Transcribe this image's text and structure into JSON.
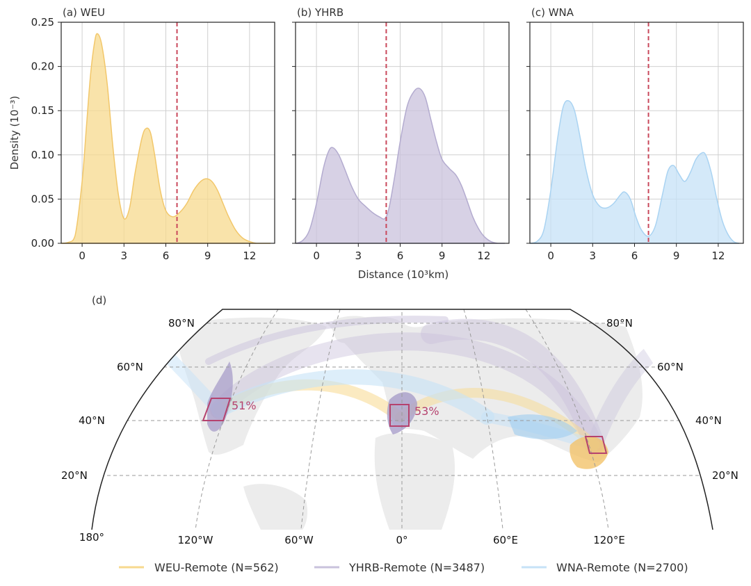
{
  "colors": {
    "weu": "#f7d98e",
    "yhrb": "#c9c2dc",
    "wna": "#c6e2f7",
    "dashed_line": "#c9485b",
    "box": "#b5426e",
    "grid": "#d0d0d0"
  },
  "chart_data": [
    {
      "type": "area",
      "title": "(a) WEU",
      "series_key": "weu",
      "xlabel": "",
      "ylabel": "Density (10⁻³)",
      "xlim": [
        -1.5,
        13.8
      ],
      "ylim": [
        0,
        0.25
      ],
      "xticks": [
        "0",
        "3",
        "6",
        "9",
        "12"
      ],
      "yticks": [
        "0.00",
        "0.05",
        "0.10",
        "0.15",
        "0.20",
        "0.25"
      ],
      "threshold_x": 6.8,
      "x": [
        -1.5,
        -1.0,
        -0.5,
        0.0,
        0.3,
        0.6,
        0.9,
        1.1,
        1.4,
        1.8,
        2.2,
        2.6,
        3.0,
        3.4,
        3.8,
        4.3,
        4.6,
        4.9,
        5.2,
        5.6,
        6.0,
        6.5,
        7.0,
        7.5,
        8.0,
        8.5,
        8.9,
        9.3,
        9.7,
        10.1,
        10.5,
        11.0,
        11.5,
        12.0,
        12.5,
        13.0,
        13.5
      ],
      "y": [
        0.0,
        0.001,
        0.009,
        0.07,
        0.13,
        0.19,
        0.228,
        0.237,
        0.225,
        0.18,
        0.11,
        0.055,
        0.028,
        0.04,
        0.08,
        0.12,
        0.13,
        0.125,
        0.1,
        0.06,
        0.037,
        0.03,
        0.035,
        0.045,
        0.06,
        0.07,
        0.073,
        0.07,
        0.06,
        0.045,
        0.03,
        0.015,
        0.006,
        0.002,
        0.0,
        0.0,
        0.0
      ]
    },
    {
      "type": "area",
      "title": "(b) YHRB",
      "series_key": "yhrb",
      "xlabel": "Distance (10³km)",
      "ylabel": "",
      "xlim": [
        -1.5,
        13.8
      ],
      "ylim": [
        0,
        0.25
      ],
      "xticks": [
        "0",
        "3",
        "6",
        "9",
        "12"
      ],
      "yticks": [],
      "threshold_x": 5.0,
      "x": [
        -1.5,
        -1.0,
        -0.5,
        0.0,
        0.5,
        0.9,
        1.2,
        1.6,
        2.0,
        2.5,
        3.0,
        3.5,
        4.0,
        4.5,
        4.9,
        5.2,
        5.6,
        6.0,
        6.5,
        7.0,
        7.4,
        7.8,
        8.2,
        8.6,
        9.0,
        9.5,
        10.0,
        10.4,
        10.8,
        11.2,
        11.6,
        12.0,
        12.5,
        13.0,
        13.5
      ],
      "y": [
        0.0,
        0.003,
        0.015,
        0.045,
        0.085,
        0.105,
        0.108,
        0.1,
        0.085,
        0.065,
        0.05,
        0.042,
        0.035,
        0.03,
        0.028,
        0.04,
        0.075,
        0.115,
        0.155,
        0.172,
        0.175,
        0.165,
        0.14,
        0.115,
        0.095,
        0.085,
        0.077,
        0.065,
        0.048,
        0.03,
        0.017,
        0.008,
        0.002,
        0.0,
        0.0
      ]
    },
    {
      "type": "area",
      "title": "(c) WNA",
      "series_key": "wna",
      "xlabel": "",
      "ylabel": "",
      "xlim": [
        -1.5,
        13.8
      ],
      "ylim": [
        0,
        0.25
      ],
      "xticks": [
        "0",
        "3",
        "6",
        "9",
        "12"
      ],
      "yticks": [],
      "threshold_x": 7.0,
      "x": [
        -1.5,
        -1.0,
        -0.5,
        0.0,
        0.5,
        0.9,
        1.3,
        1.7,
        2.1,
        2.5,
        3.0,
        3.5,
        4.0,
        4.5,
        5.0,
        5.3,
        5.7,
        6.1,
        6.5,
        7.0,
        7.5,
        8.0,
        8.4,
        8.8,
        9.2,
        9.6,
        10.0,
        10.4,
        10.8,
        11.1,
        11.5,
        11.9,
        12.3,
        12.7,
        13.1,
        13.5
      ],
      "y": [
        0.0,
        0.002,
        0.015,
        0.06,
        0.12,
        0.155,
        0.161,
        0.15,
        0.12,
        0.085,
        0.055,
        0.042,
        0.04,
        0.045,
        0.055,
        0.058,
        0.05,
        0.03,
        0.015,
        0.008,
        0.02,
        0.055,
        0.082,
        0.088,
        0.078,
        0.07,
        0.08,
        0.095,
        0.102,
        0.1,
        0.08,
        0.05,
        0.025,
        0.01,
        0.002,
        0.0
      ]
    },
    {
      "type": "map",
      "title": "(d)",
      "lat_labels": [
        "20°N",
        "40°N",
        "60°N",
        "80°N"
      ],
      "lon_labels": [
        "180°",
        "120°W",
        "60°W",
        "0°",
        "60°E",
        "120°E"
      ],
      "regions": [
        {
          "name": "WEU",
          "percent": "53%"
        },
        {
          "name": "WNA",
          "percent": "51%"
        },
        {
          "name": "YHRB",
          "percent": ""
        }
      ],
      "legend": [
        {
          "label": "WEU-Remote (N=562)",
          "color_key": "weu"
        },
        {
          "label": "YHRB-Remote (N=3487)",
          "color_key": "yhrb"
        },
        {
          "label": "WNA-Remote (N=2700)",
          "color_key": "wna"
        }
      ]
    }
  ]
}
